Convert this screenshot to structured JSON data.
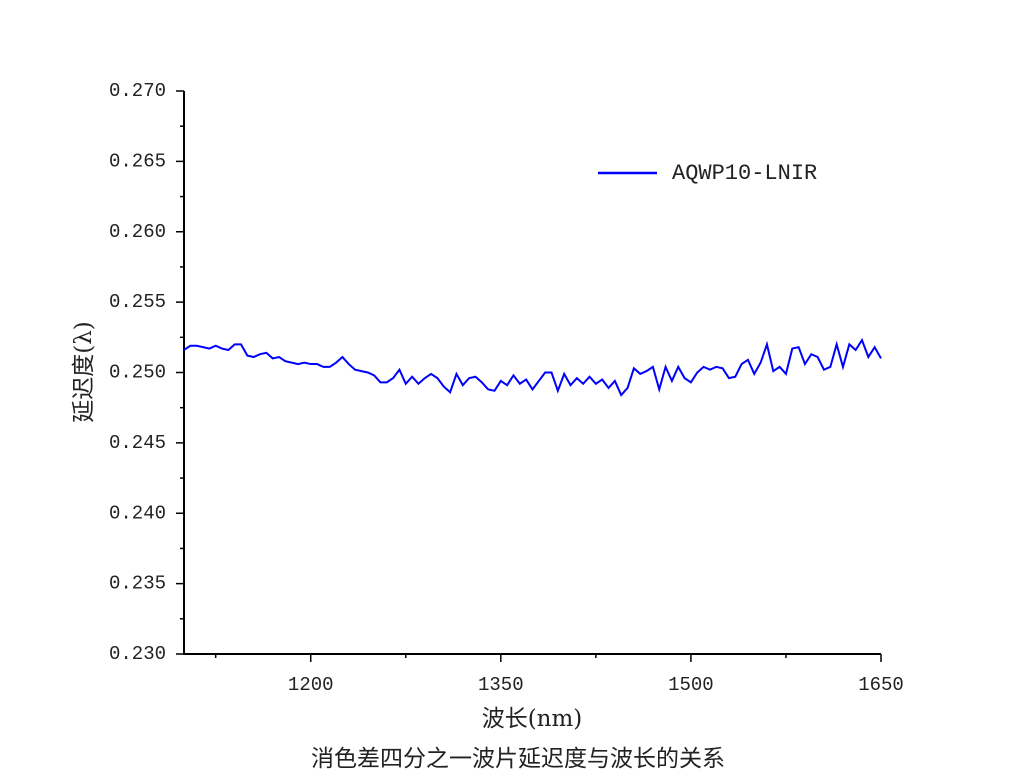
{
  "chart_data": {
    "type": "line",
    "title": "消色差四分之一波片延迟度与波长的关系",
    "x_label": "波长(nm)",
    "y_label": "延迟度(λ)",
    "x": [
      1100,
      1105,
      1110,
      1115,
      1120,
      1125,
      1130,
      1135,
      1140,
      1145,
      1150,
      1155,
      1160,
      1165,
      1170,
      1175,
      1180,
      1185,
      1190,
      1195,
      1200,
      1205,
      1210,
      1215,
      1220,
      1225,
      1230,
      1235,
      1240,
      1245,
      1250,
      1255,
      1260,
      1265,
      1270,
      1275,
      1280,
      1285,
      1290,
      1295,
      1300,
      1305,
      1310,
      1315,
      1320,
      1325,
      1330,
      1335,
      1340,
      1345,
      1350,
      1355,
      1360,
      1365,
      1370,
      1375,
      1380,
      1385,
      1390,
      1395,
      1400,
      1405,
      1410,
      1415,
      1420,
      1425,
      1430,
      1435,
      1440,
      1445,
      1450,
      1455,
      1460,
      1465,
      1470,
      1475,
      1480,
      1485,
      1490,
      1495,
      1500,
      1505,
      1510,
      1515,
      1520,
      1525,
      1530,
      1535,
      1540,
      1545,
      1550,
      1555,
      1560,
      1565,
      1570,
      1575,
      1580,
      1585,
      1590,
      1595,
      1600,
      1605,
      1610,
      1615,
      1620,
      1625,
      1630,
      1635,
      1640,
      1645,
      1650
    ],
    "series": [
      {
        "name": "AQWP10-LNIR",
        "color": "#0000ff",
        "values": [
          0.2516,
          0.2519,
          0.2519,
          0.2518,
          0.2517,
          0.2519,
          0.2517,
          0.2516,
          0.252,
          0.252,
          0.2512,
          0.2511,
          0.2513,
          0.2514,
          0.251,
          0.2511,
          0.2508,
          0.2507,
          0.2506,
          0.2507,
          0.2506,
          0.2506,
          0.2504,
          0.2504,
          0.2507,
          0.2511,
          0.2506,
          0.2502,
          0.2501,
          0.25,
          0.2498,
          0.2493,
          0.2493,
          0.2496,
          0.2502,
          0.2492,
          0.2497,
          0.2492,
          0.2496,
          0.2499,
          0.2496,
          0.249,
          0.2486,
          0.2499,
          0.2491,
          0.2496,
          0.2497,
          0.2493,
          0.2488,
          0.2487,
          0.2494,
          0.2491,
          0.2498,
          0.2492,
          0.2495,
          0.2488,
          0.2494,
          0.25,
          0.25,
          0.2487,
          0.2499,
          0.2491,
          0.2496,
          0.2492,
          0.2497,
          0.2492,
          0.2495,
          0.2489,
          0.2494,
          0.2484,
          0.2489,
          0.2503,
          0.2499,
          0.2501,
          0.2504,
          0.2488,
          0.2504,
          0.2494,
          0.2504,
          0.2496,
          0.2493,
          0.25,
          0.2504,
          0.2502,
          0.2504,
          0.2503,
          0.2496,
          0.2497,
          0.2506,
          0.2509,
          0.2499,
          0.2507,
          0.252,
          0.2501,
          0.2504,
          0.2499,
          0.2517,
          0.2518,
          0.2506,
          0.2513,
          0.2511,
          0.2502,
          0.2504,
          0.252,
          0.2504,
          0.252,
          0.2516,
          0.2523,
          0.2511,
          0.2518,
          0.251
        ]
      }
    ],
    "xlim": [
      1100,
      1650
    ],
    "xticks": [
      1200,
      1350,
      1500,
      1650
    ],
    "ylim": [
      0.23,
      0.27
    ],
    "yticks": [
      {
        "value": 0.23,
        "label": "0.230"
      },
      {
        "value": 0.235,
        "label": "0.235"
      },
      {
        "value": 0.24,
        "label": "0.240"
      },
      {
        "value": 0.245,
        "label": "0.245"
      },
      {
        "value": 0.25,
        "label": "0.250"
      },
      {
        "value": 0.255,
        "label": "0.255"
      },
      {
        "value": 0.26,
        "label": "0.260"
      },
      {
        "value": 0.265,
        "label": "0.265"
      },
      {
        "value": 0.27,
        "label": "0.270"
      }
    ],
    "grid": false,
    "legend": "upper right"
  }
}
